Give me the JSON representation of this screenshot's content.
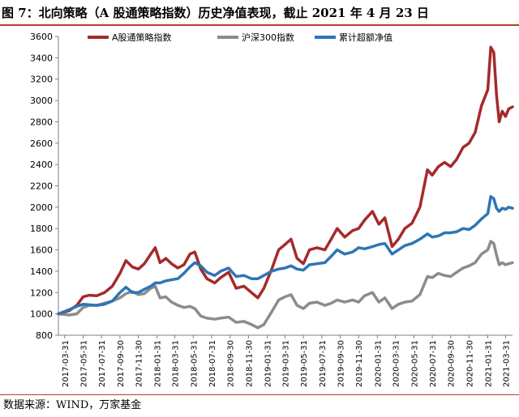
{
  "header": {
    "title": "图 7：北向策略（A 股通策略指数）历史净值表现，截止 2021 年 4 月 23 日"
  },
  "footer": {
    "source": "数据来源：WIND，万家基金"
  },
  "chart_data": {
    "type": "line",
    "xlabel": "",
    "ylabel": "",
    "ylim": [
      800,
      3600
    ],
    "yticks": [
      800,
      1000,
      1200,
      1400,
      1600,
      1800,
      2000,
      2200,
      2400,
      2600,
      2800,
      3000,
      3200,
      3400,
      3600
    ],
    "xlim": [
      "2017-03-10",
      "2021-04-23"
    ],
    "xticks": [
      "2017-03-31",
      "2017-05-31",
      "2017-07-31",
      "2017-09-30",
      "2017-11-30",
      "2018-01-31",
      "2018-03-31",
      "2018-05-31",
      "2018-07-31",
      "2018-09-30",
      "2018-11-30",
      "2019-01-31",
      "2019-03-31",
      "2019-05-31",
      "2019-07-31",
      "2019-09-30",
      "2019-11-30",
      "2020-01-31",
      "2020-03-31",
      "2020-05-31",
      "2020-07-31",
      "2020-09-30",
      "2020-11-30",
      "2021-01-31",
      "2021-03-31"
    ],
    "grid": false,
    "legend_position": "top",
    "series": [
      {
        "name": "A股通策略指数",
        "color": "#a52a2a",
        "points": [
          [
            "2017-03-10",
            1000
          ],
          [
            "2017-04-15",
            1030
          ],
          [
            "2017-05-10",
            1080
          ],
          [
            "2017-05-31",
            1160
          ],
          [
            "2017-06-20",
            1175
          ],
          [
            "2017-07-15",
            1170
          ],
          [
            "2017-08-10",
            1200
          ],
          [
            "2017-09-05",
            1260
          ],
          [
            "2017-09-30",
            1380
          ],
          [
            "2017-10-20",
            1500
          ],
          [
            "2017-11-10",
            1440
          ],
          [
            "2017-11-30",
            1420
          ],
          [
            "2017-12-20",
            1470
          ],
          [
            "2018-01-10",
            1560
          ],
          [
            "2018-01-25",
            1620
          ],
          [
            "2018-02-10",
            1480
          ],
          [
            "2018-03-01",
            1520
          ],
          [
            "2018-03-20",
            1470
          ],
          [
            "2018-04-10",
            1430
          ],
          [
            "2018-04-30",
            1460
          ],
          [
            "2018-05-20",
            1560
          ],
          [
            "2018-06-05",
            1580
          ],
          [
            "2018-06-25",
            1420
          ],
          [
            "2018-07-15",
            1330
          ],
          [
            "2018-08-10",
            1290
          ],
          [
            "2018-08-30",
            1340
          ],
          [
            "2018-09-25",
            1390
          ],
          [
            "2018-10-20",
            1240
          ],
          [
            "2018-11-15",
            1260
          ],
          [
            "2018-12-10",
            1200
          ],
          [
            "2018-12-31",
            1150
          ],
          [
            "2019-01-20",
            1240
          ],
          [
            "2019-02-15",
            1420
          ],
          [
            "2019-03-10",
            1600
          ],
          [
            "2019-03-31",
            1650
          ],
          [
            "2019-04-20",
            1700
          ],
          [
            "2019-05-10",
            1520
          ],
          [
            "2019-05-31",
            1470
          ],
          [
            "2019-06-20",
            1600
          ],
          [
            "2019-07-15",
            1620
          ],
          [
            "2019-08-10",
            1600
          ],
          [
            "2019-08-31",
            1700
          ],
          [
            "2019-09-20",
            1800
          ],
          [
            "2019-10-15",
            1720
          ],
          [
            "2019-11-10",
            1780
          ],
          [
            "2019-11-30",
            1800
          ],
          [
            "2019-12-20",
            1880
          ],
          [
            "2020-01-15",
            1960
          ],
          [
            "2020-02-05",
            1840
          ],
          [
            "2020-02-25",
            1900
          ],
          [
            "2020-03-20",
            1630
          ],
          [
            "2020-04-10",
            1700
          ],
          [
            "2020-05-01",
            1800
          ],
          [
            "2020-05-25",
            1850
          ],
          [
            "2020-06-20",
            2000
          ],
          [
            "2020-07-15",
            2350
          ],
          [
            "2020-07-31",
            2300
          ],
          [
            "2020-08-20",
            2380
          ],
          [
            "2020-09-10",
            2420
          ],
          [
            "2020-09-30",
            2380
          ],
          [
            "2020-10-20",
            2450
          ],
          [
            "2020-11-10",
            2560
          ],
          [
            "2020-11-30",
            2600
          ],
          [
            "2020-12-20",
            2700
          ],
          [
            "2021-01-10",
            2950
          ],
          [
            "2021-01-31",
            3100
          ],
          [
            "2021-02-10",
            3500
          ],
          [
            "2021-02-20",
            3450
          ],
          [
            "2021-03-01",
            3050
          ],
          [
            "2021-03-10",
            2800
          ],
          [
            "2021-03-20",
            2900
          ],
          [
            "2021-03-31",
            2850
          ],
          [
            "2021-04-10",
            2920
          ],
          [
            "2021-04-23",
            2940
          ]
        ]
      },
      {
        "name": "沪深300指数",
        "color": "#8c8c8c",
        "points": [
          [
            "2017-03-10",
            1000
          ],
          [
            "2017-04-15",
            990
          ],
          [
            "2017-05-10",
            1000
          ],
          [
            "2017-05-31",
            1060
          ],
          [
            "2017-06-20",
            1080
          ],
          [
            "2017-07-15",
            1080
          ],
          [
            "2017-08-10",
            1100
          ],
          [
            "2017-09-05",
            1120
          ],
          [
            "2017-09-30",
            1150
          ],
          [
            "2017-10-20",
            1190
          ],
          [
            "2017-11-10",
            1210
          ],
          [
            "2017-11-30",
            1180
          ],
          [
            "2017-12-20",
            1190
          ],
          [
            "2018-01-10",
            1240
          ],
          [
            "2018-01-25",
            1260
          ],
          [
            "2018-02-10",
            1150
          ],
          [
            "2018-03-01",
            1160
          ],
          [
            "2018-03-20",
            1110
          ],
          [
            "2018-04-10",
            1080
          ],
          [
            "2018-04-30",
            1060
          ],
          [
            "2018-05-20",
            1070
          ],
          [
            "2018-06-05",
            1050
          ],
          [
            "2018-06-25",
            980
          ],
          [
            "2018-07-15",
            960
          ],
          [
            "2018-08-10",
            950
          ],
          [
            "2018-08-30",
            960
          ],
          [
            "2018-09-25",
            970
          ],
          [
            "2018-10-20",
            920
          ],
          [
            "2018-11-15",
            930
          ],
          [
            "2018-12-10",
            900
          ],
          [
            "2018-12-31",
            870
          ],
          [
            "2019-01-20",
            900
          ],
          [
            "2019-02-15",
            1020
          ],
          [
            "2019-03-10",
            1130
          ],
          [
            "2019-03-31",
            1160
          ],
          [
            "2019-04-20",
            1180
          ],
          [
            "2019-05-10",
            1080
          ],
          [
            "2019-05-31",
            1050
          ],
          [
            "2019-06-20",
            1100
          ],
          [
            "2019-07-15",
            1110
          ],
          [
            "2019-08-10",
            1080
          ],
          [
            "2019-08-31",
            1100
          ],
          [
            "2019-09-20",
            1130
          ],
          [
            "2019-10-15",
            1110
          ],
          [
            "2019-11-10",
            1130
          ],
          [
            "2019-11-30",
            1110
          ],
          [
            "2019-12-20",
            1170
          ],
          [
            "2020-01-15",
            1200
          ],
          [
            "2020-02-05",
            1110
          ],
          [
            "2020-02-25",
            1150
          ],
          [
            "2020-03-20",
            1050
          ],
          [
            "2020-04-10",
            1090
          ],
          [
            "2020-05-01",
            1110
          ],
          [
            "2020-05-25",
            1120
          ],
          [
            "2020-06-20",
            1180
          ],
          [
            "2020-07-15",
            1350
          ],
          [
            "2020-07-31",
            1340
          ],
          [
            "2020-08-20",
            1380
          ],
          [
            "2020-09-10",
            1360
          ],
          [
            "2020-09-30",
            1350
          ],
          [
            "2020-10-20",
            1390
          ],
          [
            "2020-11-10",
            1430
          ],
          [
            "2020-11-30",
            1450
          ],
          [
            "2020-12-20",
            1480
          ],
          [
            "2021-01-10",
            1560
          ],
          [
            "2021-01-31",
            1600
          ],
          [
            "2021-02-10",
            1680
          ],
          [
            "2021-02-20",
            1660
          ],
          [
            "2021-03-01",
            1550
          ],
          [
            "2021-03-10",
            1460
          ],
          [
            "2021-03-20",
            1480
          ],
          [
            "2021-03-31",
            1460
          ],
          [
            "2021-04-10",
            1470
          ],
          [
            "2021-04-23",
            1480
          ]
        ]
      },
      {
        "name": "累计超额净值",
        "color": "#2e75b6",
        "points": [
          [
            "2017-03-10",
            1000
          ],
          [
            "2017-04-15",
            1040
          ],
          [
            "2017-05-10",
            1070
          ],
          [
            "2017-05-31",
            1090
          ],
          [
            "2017-06-20",
            1085
          ],
          [
            "2017-07-15",
            1080
          ],
          [
            "2017-08-10",
            1090
          ],
          [
            "2017-09-05",
            1120
          ],
          [
            "2017-09-30",
            1200
          ],
          [
            "2017-10-20",
            1250
          ],
          [
            "2017-11-10",
            1200
          ],
          [
            "2017-11-30",
            1200
          ],
          [
            "2017-12-20",
            1230
          ],
          [
            "2018-01-10",
            1260
          ],
          [
            "2018-01-25",
            1290
          ],
          [
            "2018-02-10",
            1290
          ],
          [
            "2018-03-01",
            1310
          ],
          [
            "2018-03-20",
            1320
          ],
          [
            "2018-04-10",
            1330
          ],
          [
            "2018-04-30",
            1380
          ],
          [
            "2018-05-20",
            1440
          ],
          [
            "2018-06-05",
            1480
          ],
          [
            "2018-06-25",
            1450
          ],
          [
            "2018-07-15",
            1390
          ],
          [
            "2018-08-10",
            1360
          ],
          [
            "2018-08-30",
            1400
          ],
          [
            "2018-09-25",
            1430
          ],
          [
            "2018-10-20",
            1350
          ],
          [
            "2018-11-15",
            1360
          ],
          [
            "2018-12-10",
            1330
          ],
          [
            "2018-12-31",
            1330
          ],
          [
            "2019-01-20",
            1360
          ],
          [
            "2019-02-15",
            1400
          ],
          [
            "2019-03-10",
            1420
          ],
          [
            "2019-03-31",
            1430
          ],
          [
            "2019-04-20",
            1450
          ],
          [
            "2019-05-10",
            1420
          ],
          [
            "2019-05-31",
            1410
          ],
          [
            "2019-06-20",
            1460
          ],
          [
            "2019-07-15",
            1470
          ],
          [
            "2019-08-10",
            1480
          ],
          [
            "2019-08-31",
            1540
          ],
          [
            "2019-09-20",
            1600
          ],
          [
            "2019-10-15",
            1560
          ],
          [
            "2019-11-10",
            1580
          ],
          [
            "2019-11-30",
            1620
          ],
          [
            "2019-12-20",
            1610
          ],
          [
            "2020-01-15",
            1630
          ],
          [
            "2020-02-05",
            1650
          ],
          [
            "2020-02-25",
            1660
          ],
          [
            "2020-03-20",
            1560
          ],
          [
            "2020-04-10",
            1600
          ],
          [
            "2020-05-01",
            1640
          ],
          [
            "2020-05-25",
            1660
          ],
          [
            "2020-06-20",
            1700
          ],
          [
            "2020-07-15",
            1750
          ],
          [
            "2020-07-31",
            1720
          ],
          [
            "2020-08-20",
            1730
          ],
          [
            "2020-09-10",
            1760
          ],
          [
            "2020-09-30",
            1760
          ],
          [
            "2020-10-20",
            1770
          ],
          [
            "2020-11-10",
            1800
          ],
          [
            "2020-11-30",
            1790
          ],
          [
            "2020-12-20",
            1830
          ],
          [
            "2021-01-10",
            1890
          ],
          [
            "2021-01-31",
            1940
          ],
          [
            "2021-02-10",
            2100
          ],
          [
            "2021-02-20",
            2080
          ],
          [
            "2021-03-01",
            1990
          ],
          [
            "2021-03-10",
            1960
          ],
          [
            "2021-03-20",
            1990
          ],
          [
            "2021-03-31",
            1980
          ],
          [
            "2021-04-10",
            2000
          ],
          [
            "2021-04-23",
            1990
          ]
        ]
      }
    ]
  }
}
